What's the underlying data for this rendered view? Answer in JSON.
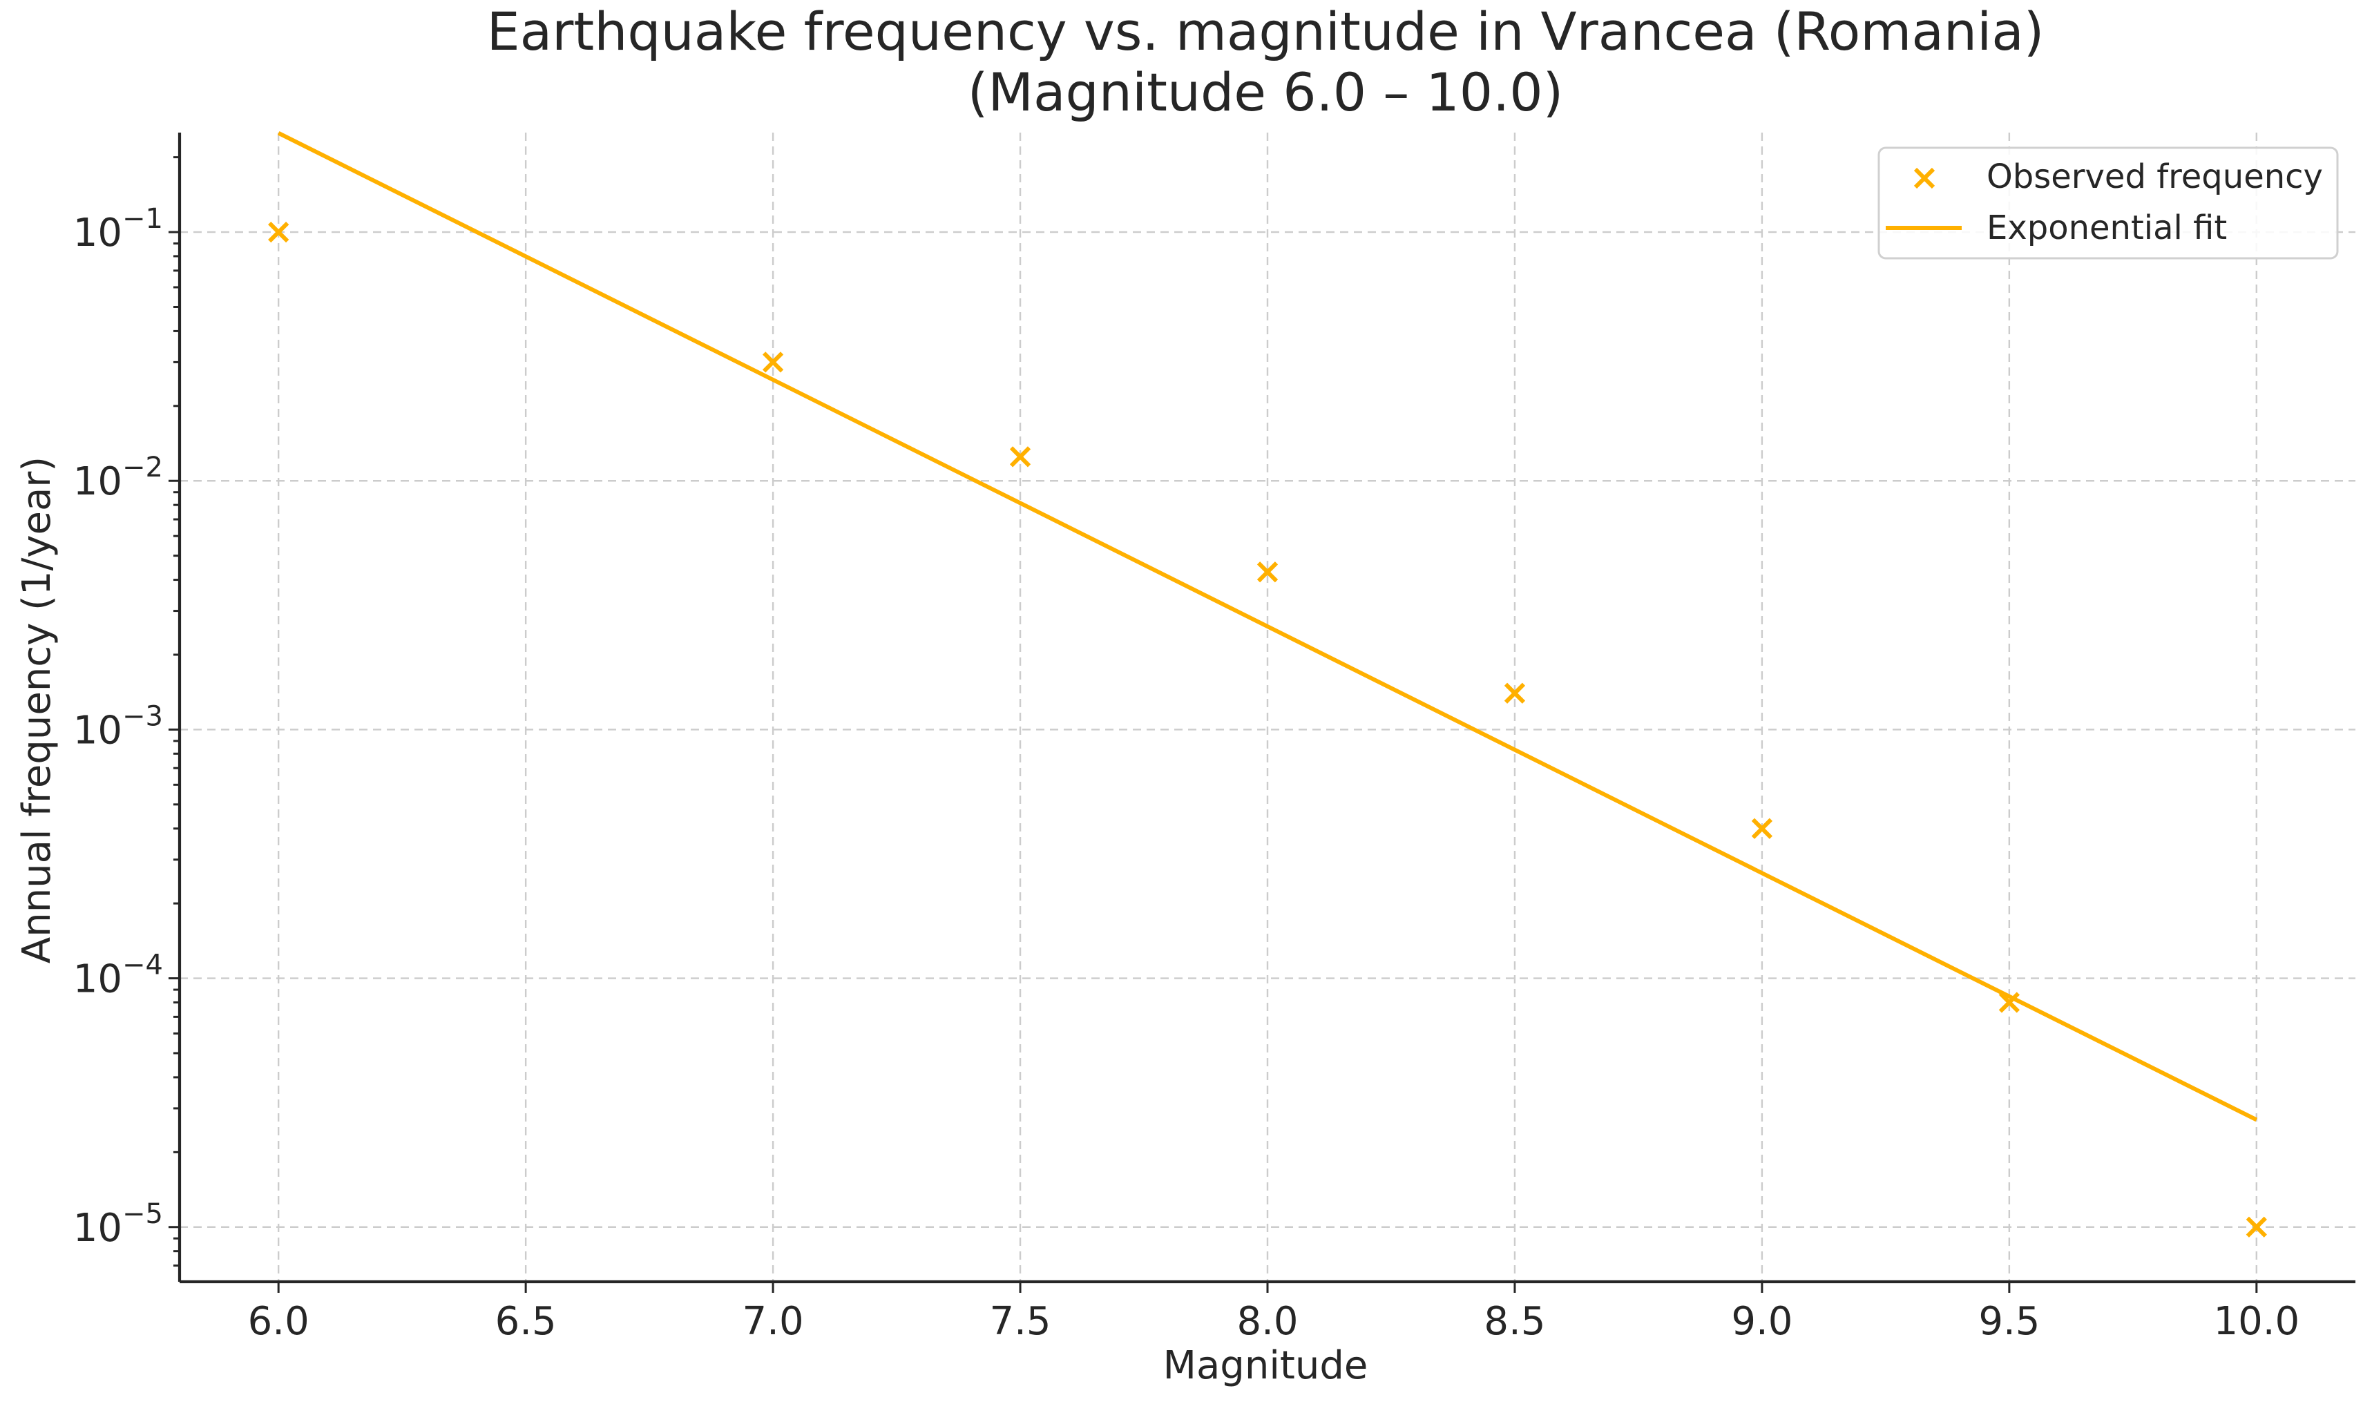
{
  "chart_data": {
    "type": "scatter",
    "title": "Earthquake frequency vs. magnitude in Vrancea (Romania)",
    "subtitle": "(Magnitude 6.0 – 10.0)",
    "xlabel": "Magnitude",
    "ylabel": "Annual frequency (1/year)",
    "xlim": [
      5.8,
      10.2
    ],
    "ylim_log10": [
      -5.22,
      -0.6
    ],
    "yscale": "log",
    "grid": true,
    "legend_position": "top-right",
    "x_ticks": [
      6.0,
      6.5,
      7.0,
      7.5,
      8.0,
      8.5,
      9.0,
      9.5,
      10.0
    ],
    "x_tick_labels": [
      "6.0",
      "6.5",
      "7.0",
      "7.5",
      "8.0",
      "8.5",
      "9.0",
      "9.5",
      "10.0"
    ],
    "y_ticks_exponent": [
      -1,
      -2,
      -3,
      -4,
      -5
    ],
    "y_tick_base": "10",
    "y_tick_exponent_labels": [
      "−1",
      "−2",
      "−3",
      "−4",
      "−5"
    ],
    "color": "#FFB000",
    "series": [
      {
        "name": "Observed frequency",
        "kind": "scatter",
        "marker": "x",
        "x": [
          6.0,
          7.0,
          7.5,
          8.0,
          8.5,
          9.0,
          9.5,
          10.0
        ],
        "y": [
          0.1,
          0.03,
          0.0125,
          0.0043,
          0.0014,
          0.0004,
          8e-05,
          1e-05
        ]
      },
      {
        "name": "Exponential fit",
        "kind": "line",
        "x": [
          6.0,
          10.0
        ],
        "y": [
          0.25,
          2.7e-05
        ]
      }
    ]
  }
}
